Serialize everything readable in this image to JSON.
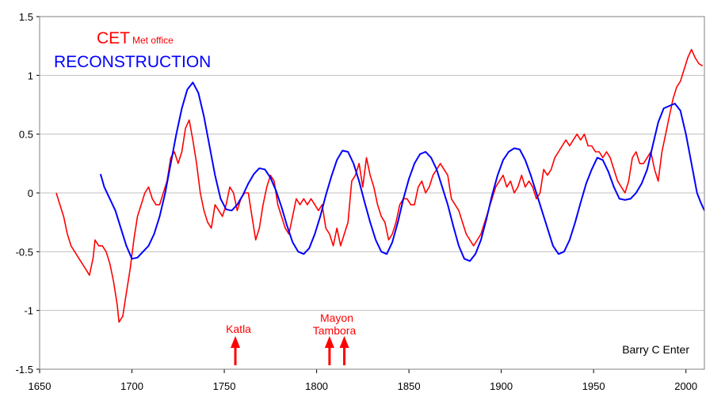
{
  "chart_data": {
    "type": "line",
    "title": "",
    "xlabel": "",
    "ylabel": "",
    "xlim": [
      1650,
      2010
    ],
    "ylim": [
      -1.5,
      1.5
    ],
    "x_ticks": [
      1650,
      1700,
      1750,
      1800,
      1850,
      1900,
      1950,
      2000
    ],
    "y_ticks": [
      1.5,
      1,
      0.5,
      0,
      -0.5,
      -1,
      -1.5
    ],
    "y_tick_labels": [
      "1.5",
      "1",
      "0.5",
      "0",
      "-0.5",
      "-1",
      "-1.5"
    ],
    "grid": "horizontal",
    "legend": {
      "position": "top-left",
      "entries": [
        {
          "name": "CET",
          "suffix": "Met office",
          "color": "#ff0000"
        },
        {
          "name": "RECONSTRUCTION",
          "suffix": "",
          "color": "#0000ff"
        }
      ]
    },
    "series": [
      {
        "name": "CET",
        "color": "#ff0000",
        "points": [
          [
            1659,
            0.0
          ],
          [
            1661,
            -0.1
          ],
          [
            1663,
            -0.2
          ],
          [
            1665,
            -0.35
          ],
          [
            1667,
            -0.45
          ],
          [
            1669,
            -0.5
          ],
          [
            1671,
            -0.55
          ],
          [
            1673,
            -0.6
          ],
          [
            1675,
            -0.65
          ],
          [
            1677,
            -0.7
          ],
          [
            1679,
            -0.55
          ],
          [
            1680,
            -0.4
          ],
          [
            1682,
            -0.45
          ],
          [
            1684,
            -0.45
          ],
          [
            1686,
            -0.5
          ],
          [
            1688,
            -0.6
          ],
          [
            1690,
            -0.75
          ],
          [
            1692,
            -0.95
          ],
          [
            1693,
            -1.1
          ],
          [
            1695,
            -1.05
          ],
          [
            1697,
            -0.85
          ],
          [
            1699,
            -0.65
          ],
          [
            1701,
            -0.4
          ],
          [
            1703,
            -0.2
          ],
          [
            1705,
            -0.1
          ],
          [
            1707,
            0.0
          ],
          [
            1709,
            0.05
          ],
          [
            1711,
            -0.05
          ],
          [
            1713,
            -0.1
          ],
          [
            1715,
            -0.1
          ],
          [
            1717,
            0.0
          ],
          [
            1719,
            0.1
          ],
          [
            1721,
            0.3
          ],
          [
            1723,
            0.35
          ],
          [
            1725,
            0.25
          ],
          [
            1727,
            0.35
          ],
          [
            1729,
            0.55
          ],
          [
            1731,
            0.62
          ],
          [
            1733,
            0.45
          ],
          [
            1735,
            0.25
          ],
          [
            1737,
            0.0
          ],
          [
            1739,
            -0.15
          ],
          [
            1741,
            -0.25
          ],
          [
            1743,
            -0.3
          ],
          [
            1745,
            -0.1
          ],
          [
            1747,
            -0.15
          ],
          [
            1749,
            -0.2
          ],
          [
            1751,
            -0.1
          ],
          [
            1753,
            0.05
          ],
          [
            1755,
            0.0
          ],
          [
            1757,
            -0.15
          ],
          [
            1759,
            -0.05
          ],
          [
            1761,
            0.0
          ],
          [
            1763,
            0.0
          ],
          [
            1765,
            -0.2
          ],
          [
            1767,
            -0.4
          ],
          [
            1769,
            -0.3
          ],
          [
            1771,
            -0.1
          ],
          [
            1773,
            0.05
          ],
          [
            1775,
            0.15
          ],
          [
            1777,
            0.1
          ],
          [
            1779,
            -0.1
          ],
          [
            1781,
            -0.2
          ],
          [
            1783,
            -0.3
          ],
          [
            1785,
            -0.35
          ],
          [
            1787,
            -0.2
          ],
          [
            1789,
            -0.05
          ],
          [
            1791,
            -0.1
          ],
          [
            1793,
            -0.05
          ],
          [
            1795,
            -0.1
          ],
          [
            1797,
            -0.05
          ],
          [
            1799,
            -0.1
          ],
          [
            1801,
            -0.15
          ],
          [
            1803,
            -0.1
          ],
          [
            1805,
            -0.3
          ],
          [
            1807,
            -0.35
          ],
          [
            1809,
            -0.45
          ],
          [
            1811,
            -0.3
          ],
          [
            1813,
            -0.45
          ],
          [
            1815,
            -0.35
          ],
          [
            1817,
            -0.25
          ],
          [
            1819,
            0.1
          ],
          [
            1821,
            0.15
          ],
          [
            1823,
            0.25
          ],
          [
            1825,
            0.05
          ],
          [
            1827,
            0.3
          ],
          [
            1829,
            0.15
          ],
          [
            1831,
            0.05
          ],
          [
            1833,
            -0.1
          ],
          [
            1835,
            -0.2
          ],
          [
            1837,
            -0.25
          ],
          [
            1839,
            -0.4
          ],
          [
            1841,
            -0.35
          ],
          [
            1843,
            -0.25
          ],
          [
            1845,
            -0.1
          ],
          [
            1847,
            -0.05
          ],
          [
            1849,
            -0.05
          ],
          [
            1851,
            -0.1
          ],
          [
            1853,
            -0.1
          ],
          [
            1855,
            0.05
          ],
          [
            1857,
            0.1
          ],
          [
            1859,
            0.0
          ],
          [
            1861,
            0.05
          ],
          [
            1863,
            0.15
          ],
          [
            1865,
            0.2
          ],
          [
            1867,
            0.25
          ],
          [
            1869,
            0.2
          ],
          [
            1871,
            0.15
          ],
          [
            1873,
            -0.05
          ],
          [
            1875,
            -0.1
          ],
          [
            1877,
            -0.15
          ],
          [
            1879,
            -0.25
          ],
          [
            1881,
            -0.35
          ],
          [
            1883,
            -0.4
          ],
          [
            1885,
            -0.45
          ],
          [
            1887,
            -0.4
          ],
          [
            1889,
            -0.35
          ],
          [
            1891,
            -0.25
          ],
          [
            1893,
            -0.15
          ],
          [
            1895,
            -0.05
          ],
          [
            1897,
            0.05
          ],
          [
            1899,
            0.1
          ],
          [
            1901,
            0.15
          ],
          [
            1903,
            0.05
          ],
          [
            1905,
            0.1
          ],
          [
            1907,
            0.0
          ],
          [
            1909,
            0.05
          ],
          [
            1911,
            0.15
          ],
          [
            1913,
            0.05
          ],
          [
            1915,
            0.1
          ],
          [
            1917,
            0.05
          ],
          [
            1919,
            -0.05
          ],
          [
            1921,
            0.0
          ],
          [
            1923,
            0.2
          ],
          [
            1925,
            0.15
          ],
          [
            1927,
            0.2
          ],
          [
            1929,
            0.3
          ],
          [
            1931,
            0.35
          ],
          [
            1933,
            0.4
          ],
          [
            1935,
            0.45
          ],
          [
            1937,
            0.4
          ],
          [
            1939,
            0.45
          ],
          [
            1941,
            0.5
          ],
          [
            1943,
            0.45
          ],
          [
            1945,
            0.5
          ],
          [
            1947,
            0.4
          ],
          [
            1949,
            0.4
          ],
          [
            1951,
            0.35
          ],
          [
            1953,
            0.35
          ],
          [
            1955,
            0.3
          ],
          [
            1957,
            0.35
          ],
          [
            1959,
            0.3
          ],
          [
            1961,
            0.2
          ],
          [
            1963,
            0.1
          ],
          [
            1965,
            0.05
          ],
          [
            1967,
            0.0
          ],
          [
            1969,
            0.1
          ],
          [
            1971,
            0.3
          ],
          [
            1973,
            0.35
          ],
          [
            1975,
            0.25
          ],
          [
            1977,
            0.25
          ],
          [
            1979,
            0.3
          ],
          [
            1981,
            0.35
          ],
          [
            1983,
            0.2
          ],
          [
            1985,
            0.1
          ],
          [
            1987,
            0.35
          ],
          [
            1989,
            0.5
          ],
          [
            1991,
            0.65
          ],
          [
            1993,
            0.8
          ],
          [
            1995,
            0.9
          ],
          [
            1997,
            0.95
          ],
          [
            1999,
            1.05
          ],
          [
            2001,
            1.15
          ],
          [
            2003,
            1.22
          ],
          [
            2005,
            1.15
          ],
          [
            2007,
            1.1
          ],
          [
            2009,
            1.08
          ]
        ]
      },
      {
        "name": "RECONSTRUCTION",
        "color": "#0000ff",
        "points": [
          [
            1683,
            0.16
          ],
          [
            1685,
            0.05
          ],
          [
            1688,
            -0.05
          ],
          [
            1691,
            -0.15
          ],
          [
            1694,
            -0.3
          ],
          [
            1697,
            -0.45
          ],
          [
            1700,
            -0.56
          ],
          [
            1703,
            -0.55
          ],
          [
            1706,
            -0.5
          ],
          [
            1709,
            -0.45
          ],
          [
            1712,
            -0.35
          ],
          [
            1715,
            -0.2
          ],
          [
            1718,
            0.0
          ],
          [
            1721,
            0.25
          ],
          [
            1724,
            0.5
          ],
          [
            1727,
            0.72
          ],
          [
            1730,
            0.88
          ],
          [
            1733,
            0.94
          ],
          [
            1736,
            0.85
          ],
          [
            1739,
            0.65
          ],
          [
            1742,
            0.4
          ],
          [
            1745,
            0.15
          ],
          [
            1748,
            -0.05
          ],
          [
            1751,
            -0.14
          ],
          [
            1754,
            -0.15
          ],
          [
            1757,
            -0.1
          ],
          [
            1760,
            -0.02
          ],
          [
            1763,
            0.08
          ],
          [
            1766,
            0.16
          ],
          [
            1769,
            0.21
          ],
          [
            1772,
            0.2
          ],
          [
            1775,
            0.13
          ],
          [
            1778,
            0.02
          ],
          [
            1781,
            -0.12
          ],
          [
            1784,
            -0.28
          ],
          [
            1787,
            -0.42
          ],
          [
            1790,
            -0.5
          ],
          [
            1793,
            -0.52
          ],
          [
            1796,
            -0.47
          ],
          [
            1799,
            -0.35
          ],
          [
            1802,
            -0.2
          ],
          [
            1805,
            -0.02
          ],
          [
            1808,
            0.14
          ],
          [
            1811,
            0.28
          ],
          [
            1814,
            0.36
          ],
          [
            1817,
            0.35
          ],
          [
            1820,
            0.25
          ],
          [
            1823,
            0.1
          ],
          [
            1826,
            -0.08
          ],
          [
            1829,
            -0.25
          ],
          [
            1832,
            -0.4
          ],
          [
            1835,
            -0.5
          ],
          [
            1838,
            -0.52
          ],
          [
            1841,
            -0.42
          ],
          [
            1844,
            -0.25
          ],
          [
            1847,
            -0.05
          ],
          [
            1850,
            0.12
          ],
          [
            1853,
            0.25
          ],
          [
            1856,
            0.33
          ],
          [
            1859,
            0.35
          ],
          [
            1862,
            0.3
          ],
          [
            1865,
            0.2
          ],
          [
            1868,
            0.05
          ],
          [
            1871,
            -0.1
          ],
          [
            1874,
            -0.28
          ],
          [
            1877,
            -0.45
          ],
          [
            1880,
            -0.56
          ],
          [
            1883,
            -0.58
          ],
          [
            1886,
            -0.52
          ],
          [
            1889,
            -0.4
          ],
          [
            1892,
            -0.22
          ],
          [
            1895,
            -0.02
          ],
          [
            1898,
            0.15
          ],
          [
            1901,
            0.28
          ],
          [
            1904,
            0.35
          ],
          [
            1907,
            0.38
          ],
          [
            1910,
            0.37
          ],
          [
            1913,
            0.28
          ],
          [
            1916,
            0.15
          ],
          [
            1919,
            0.0
          ],
          [
            1922,
            -0.15
          ],
          [
            1925,
            -0.3
          ],
          [
            1928,
            -0.45
          ],
          [
            1931,
            -0.52
          ],
          [
            1934,
            -0.5
          ],
          [
            1937,
            -0.4
          ],
          [
            1940,
            -0.25
          ],
          [
            1943,
            -0.08
          ],
          [
            1946,
            0.08
          ],
          [
            1949,
            0.2
          ],
          [
            1952,
            0.3
          ],
          [
            1955,
            0.28
          ],
          [
            1958,
            0.18
          ],
          [
            1961,
            0.05
          ],
          [
            1964,
            -0.05
          ],
          [
            1967,
            -0.06
          ],
          [
            1970,
            -0.05
          ],
          [
            1973,
            0.0
          ],
          [
            1976,
            0.08
          ],
          [
            1979,
            0.2
          ],
          [
            1982,
            0.4
          ],
          [
            1985,
            0.6
          ],
          [
            1988,
            0.72
          ],
          [
            1991,
            0.74
          ],
          [
            1994,
            0.76
          ],
          [
            1997,
            0.7
          ],
          [
            2000,
            0.5
          ],
          [
            2003,
            0.25
          ],
          [
            2006,
            0.0
          ],
          [
            2008,
            -0.08
          ],
          [
            2010,
            -0.15
          ]
        ]
      }
    ],
    "annotations": [
      {
        "label": "Katla",
        "year": 1756
      },
      {
        "label": "Mayon",
        "year": 1807
      },
      {
        "label": "Tambora",
        "year": 1815
      }
    ],
    "credit": "Barry C Enter"
  }
}
